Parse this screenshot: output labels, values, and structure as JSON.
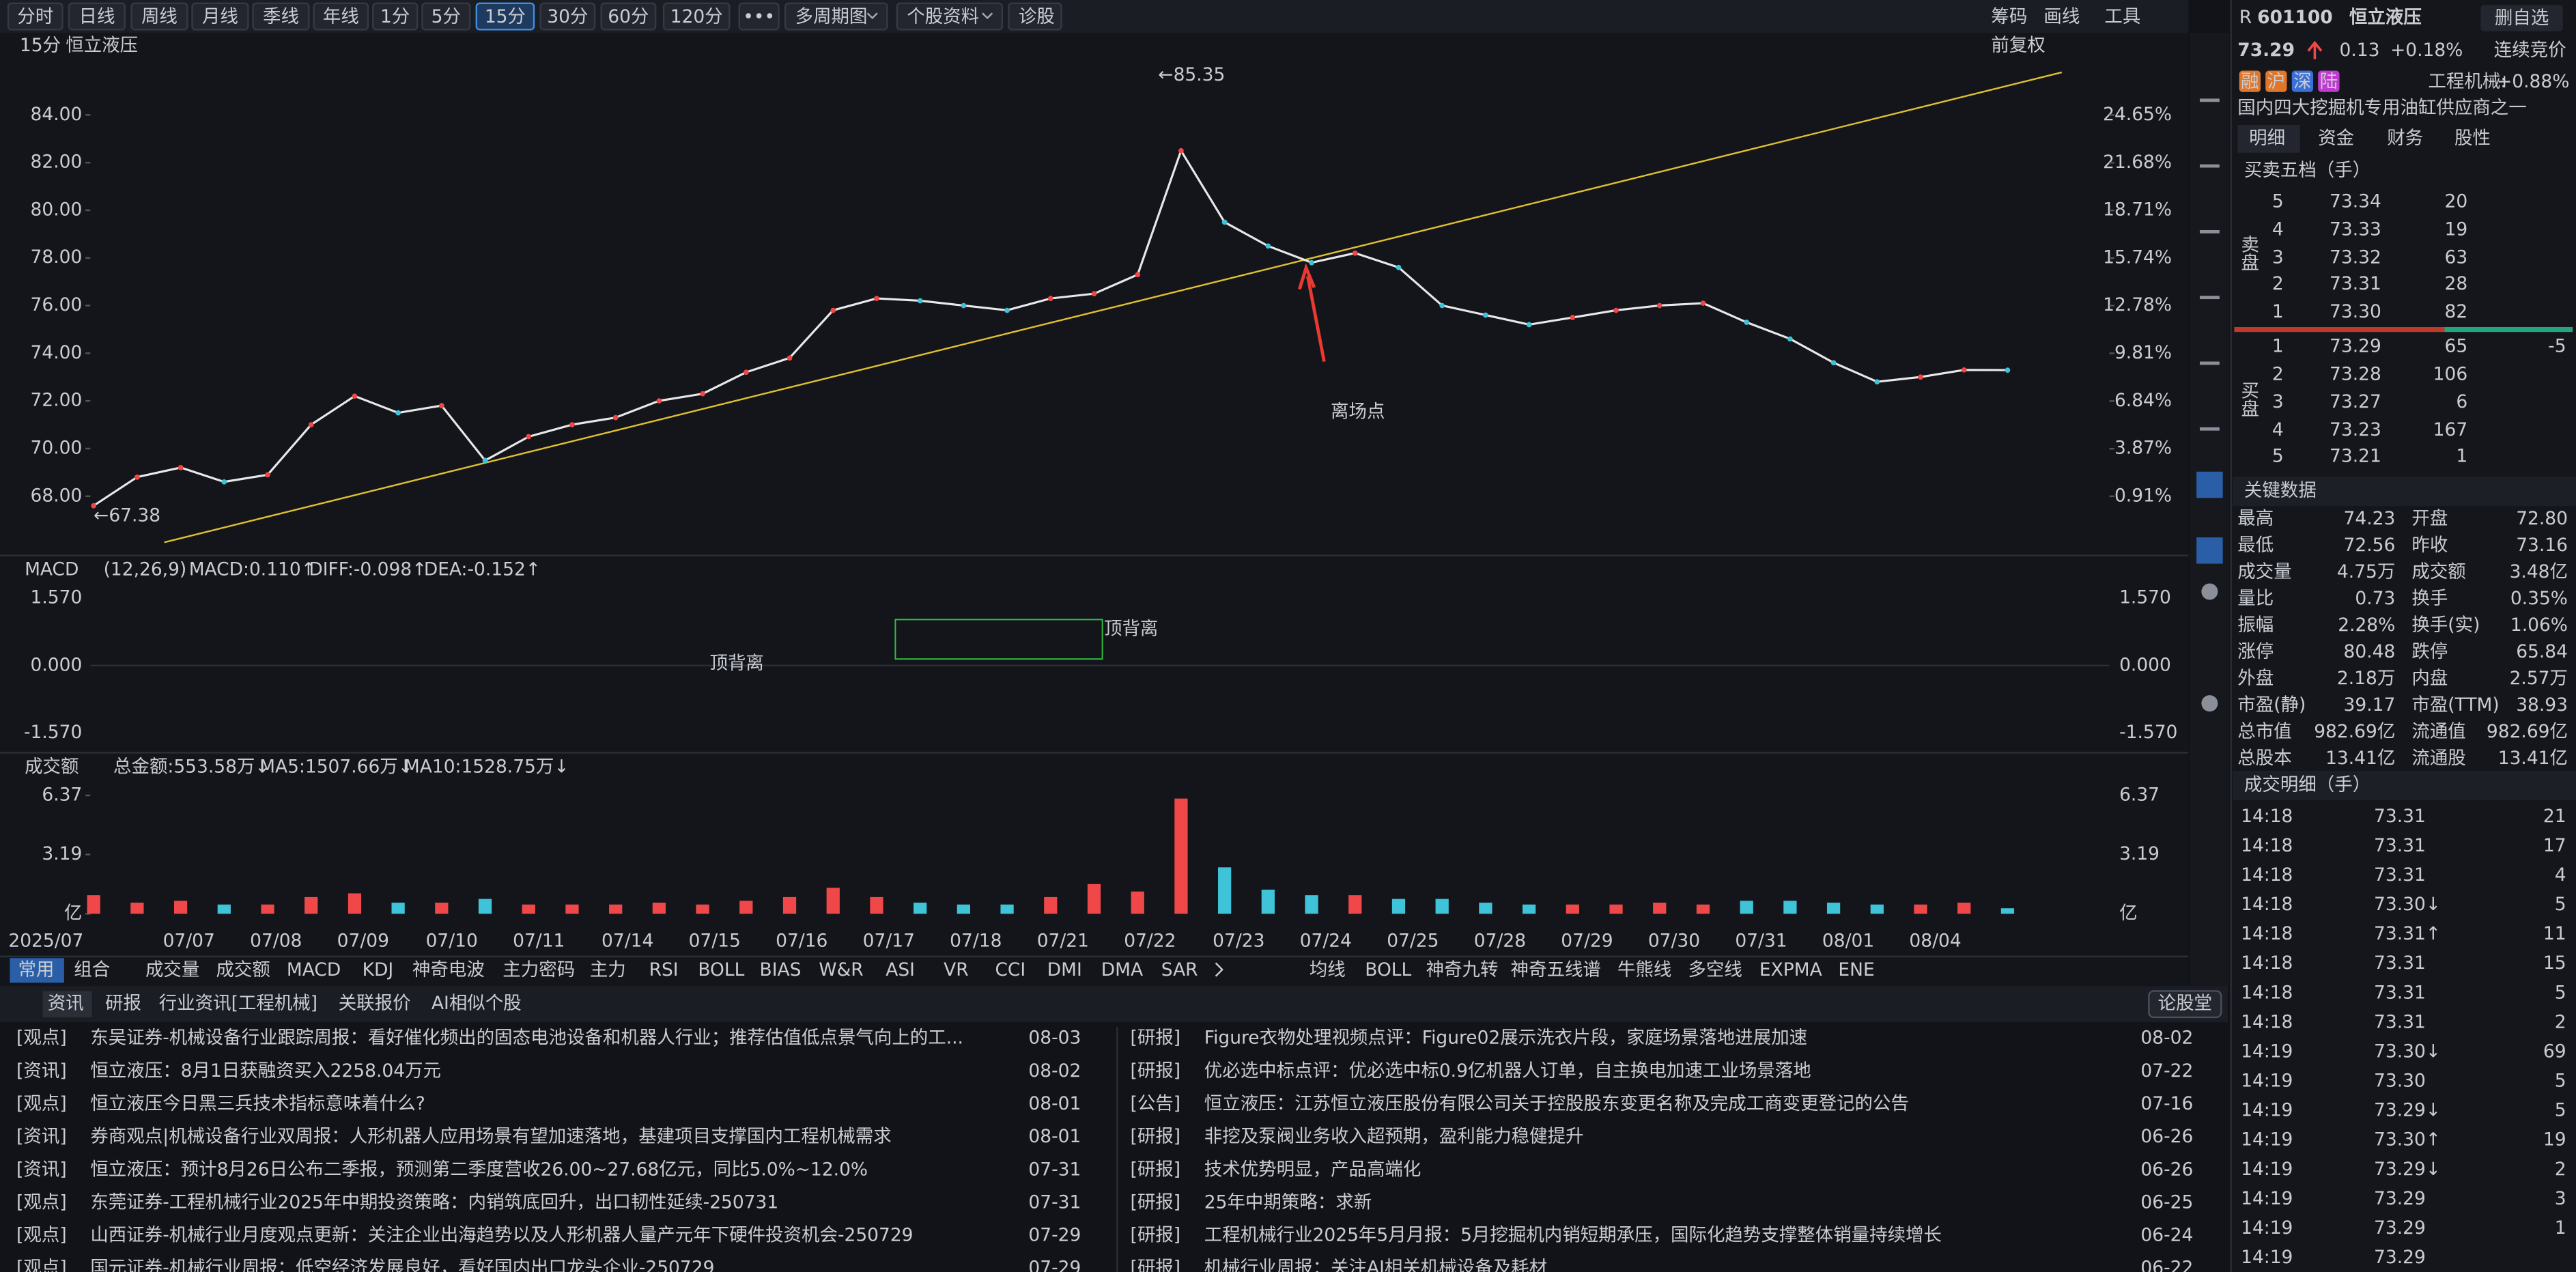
{
  "toolbar": {
    "periods": [
      "分时",
      "日线",
      "周线",
      "月线",
      "季线",
      "年线",
      "1分",
      "5分",
      "15分",
      "30分",
      "60分",
      "120分",
      "•••"
    ],
    "menus": [
      "多周期图",
      "个股资料",
      "诊股"
    ],
    "right": [
      "筹码",
      "画线",
      "工具"
    ]
  },
  "chart_header": {
    "period": "15分",
    "stock": "恒立液压",
    "adjust": "前复权"
  },
  "price_chart": {
    "type": "line",
    "closes": [
      67.6,
      68.8,
      69.2,
      68.6,
      68.9,
      71.0,
      72.2,
      71.5,
      71.8,
      69.5,
      70.5,
      71.0,
      71.3,
      72.0,
      72.3,
      73.2,
      73.8,
      75.8,
      76.3,
      76.2,
      76.0,
      75.8,
      76.3,
      76.5,
      77.3,
      82.5,
      79.5,
      78.5,
      77.8,
      78.2,
      77.6,
      76.0,
      75.6,
      75.2,
      75.5,
      75.8,
      76.0,
      76.1,
      75.3,
      74.6,
      73.6,
      72.8,
      73.0,
      73.3,
      73.29
    ],
    "color": "#e8e8e8",
    "ylim": [
      65.72,
      86.41
    ],
    "yticks": [
      {
        "value": 68,
        "label": "68.00"
      },
      {
        "value": 70,
        "label": "70.00"
      },
      {
        "value": 72,
        "label": "72.00"
      },
      {
        "value": 74,
        "label": "74.00"
      },
      {
        "value": 76,
        "label": "76.00"
      },
      {
        "value": 78,
        "label": "78.00"
      },
      {
        "value": 80,
        "label": "80.00"
      },
      {
        "value": 82,
        "label": "82.00"
      },
      {
        "value": 84,
        "label": "84.00"
      }
    ],
    "y2lim": [
      -2.47,
      28.23
    ],
    "y2ticks": [
      {
        "value": 0.91,
        "label": "0.91%"
      },
      {
        "value": 3.87,
        "label": "3.87%"
      },
      {
        "value": 6.84,
        "label": "6.84%"
      },
      {
        "value": 9.81,
        "label": "9.81%"
      },
      {
        "value": 12.78,
        "label": "12.78%"
      },
      {
        "value": 15.74,
        "label": "15.74%"
      },
      {
        "value": 18.71,
        "label": "18.71%"
      },
      {
        "value": 21.68,
        "label": "21.68%"
      },
      {
        "value": 24.65,
        "label": "24.65%"
      }
    ],
    "high_label": "←85.35",
    "low_label": "←67.38",
    "annotation": "离场点"
  },
  "macd": {
    "name": "MACD",
    "params": "(12,26,9)",
    "macd": "MACD:0.110↑",
    "diff": "DIFF:-0.098↑",
    "dea": "DEA:-0.152↑",
    "ylim": [
      -1.915,
      1.876
    ],
    "yticks": [
      {
        "value": 1.57,
        "label": "1.570"
      },
      {
        "value": 0,
        "label": "0.000"
      },
      {
        "value": -1.57,
        "label": "-1.570"
      }
    ],
    "labels": [
      "顶背离",
      "顶背离"
    ]
  },
  "volume": {
    "name": "成交额",
    "total": "总金额:553.58万↓",
    "ma5": "MA5:1507.66万↓",
    "ma10": "MA10:1528.75万↓",
    "ylim": [
      -0.35,
      6.9
    ],
    "yticks": [
      6.37,
      3.19,
      {
        "value": 0,
        "label": "亿"
      }
    ],
    "values": [
      1.0,
      0.6,
      0.7,
      0.5,
      0.5,
      0.9,
      1.1,
      0.6,
      0.6,
      0.8,
      0.5,
      0.5,
      0.5,
      0.6,
      0.5,
      0.7,
      0.9,
      1.4,
      0.9,
      0.6,
      0.5,
      0.5,
      0.9,
      1.6,
      1.2,
      6.2,
      2.5,
      1.3,
      1.0,
      1.0,
      0.8,
      0.8,
      0.6,
      0.5,
      0.5,
      0.5,
      0.6,
      0.5,
      0.7,
      0.7,
      0.6,
      0.5,
      0.5,
      0.6,
      0.3
    ]
  },
  "dates": [
    "2025/07",
    "07/07",
    "07/08",
    "07/09",
    "07/10",
    "07/11",
    "07/14",
    "07/15",
    "07/16",
    "07/17",
    "07/18",
    "07/21",
    "07/22",
    "07/23",
    "07/24",
    "07/25",
    "07/28",
    "07/29",
    "07/30",
    "07/31",
    "08/01",
    "08/04"
  ],
  "indicator_bar": {
    "groups": [
      "常用",
      "组合"
    ],
    "indicators": [
      "成交量",
      "成交额",
      "MACD",
      "KDJ",
      "神奇电波",
      "主力密码",
      "主力",
      "RSI",
      "BOLL",
      "BIAS",
      "W&R",
      "ASI",
      "VR",
      "CCI",
      "DMI",
      "DMA",
      "SAR"
    ],
    "overlays": [
      "均线",
      "BOLL",
      "神奇九转",
      "神奇五线谱",
      "牛熊线",
      "多空线",
      "EXPMA",
      "ENE"
    ]
  },
  "news": {
    "tabs": [
      "资讯",
      "研报",
      "行业资讯[工程机械]",
      "关联报价",
      "AI相似个股"
    ],
    "forum": "论股堂",
    "left": [
      [
        "[观点]",
        "东吴证券-机械设备行业跟踪周报：看好催化频出的固态电池设备和机器人行业；推荐估值低点景气向上的工...",
        "08-03"
      ],
      [
        "[资讯]",
        "恒立液压：8月1日获融资买入2258.04万元",
        "08-02"
      ],
      [
        "[观点]",
        "恒立液压今日黑三兵技术指标意味着什么?",
        "08-01"
      ],
      [
        "[资讯]",
        "券商观点|机械设备行业双周报：人形机器人应用场景有望加速落地，基建项目支撑国内工程机械需求",
        "08-01"
      ],
      [
        "[资讯]",
        "恒立液压：预计8月26日公布二季报，预测第二季度营收26.00~27.68亿元，同比5.0%~12.0%",
        "07-31"
      ],
      [
        "[观点]",
        "东莞证券-工程机械行业2025年中期投资策略：内销筑底回升，出口韧性延续-250731",
        "07-31"
      ],
      [
        "[观点]",
        "山西证券-机械行业月度观点更新：关注企业出海趋势以及人形机器人量产元年下硬件投资机会-250729",
        "07-29"
      ],
      [
        "[观点]",
        "国元证券-机械行业周报：低空经济发展良好，看好国内出口龙头企业-250729",
        "07-29"
      ]
    ],
    "right": [
      [
        "[研报]",
        "Figure衣物处理视频点评：Figure02展示洗衣片段，家庭场景落地进展加速",
        "08-02"
      ],
      [
        "[研报]",
        "优必选中标点评：优必选中标0.9亿机器人订单，自主换电加速工业场景落地",
        "07-22"
      ],
      [
        "[公告]",
        "恒立液压：江苏恒立液压股份有限公司关于控股股东变更名称及完成工商变更登记的公告",
        "07-16"
      ],
      [
        "[研报]",
        "非挖及泵阀业务收入超预期，盈利能力稳健提升",
        "06-26"
      ],
      [
        "[研报]",
        "技术优势明显，产品高端化",
        "06-26"
      ],
      [
        "[研报]",
        "25年中期策略：求新",
        "06-25"
      ],
      [
        "[研报]",
        "工程机械行业2025年5月月报：5月挖掘机内销短期承压，国际化趋势支撑整体销量持续增长",
        "06-24"
      ],
      [
        "[研报]",
        "机械行业周报：关注AI相关机械设备及耗材",
        "06-22"
      ]
    ]
  },
  "quote": {
    "market": "R",
    "code": "601100",
    "name": "恒立液压",
    "remove": "删自选",
    "price": "73.29",
    "change": "0.13",
    "pct": "+0.18%",
    "status": "连续竞价",
    "badges": [
      "融",
      "沪",
      "深",
      "陆"
    ],
    "industry": "工程机械:",
    "industry_pct": "+0.88%",
    "desc": "国内四大挖掘机专用油缸供应商之一",
    "tabs": [
      "明细",
      "资金",
      "财务",
      "股性"
    ],
    "book_title": "买卖五档（手）",
    "sell_label": "卖盘",
    "buy_label": "买盘",
    "asks": [
      [
        5,
        "73.34",
        20
      ],
      [
        4,
        "73.33",
        19
      ],
      [
        3,
        "73.32",
        63
      ],
      [
        2,
        "73.31",
        28
      ],
      [
        1,
        "73.30",
        82
      ]
    ],
    "bids": [
      [
        1,
        "73.29",
        65
      ],
      [
        2,
        "73.28",
        106
      ],
      [
        3,
        "73.27",
        6
      ],
      [
        4,
        "73.23",
        167
      ],
      [
        5,
        "73.21",
        1
      ]
    ],
    "bid_change": -5,
    "key_title": "关键数据",
    "key": [
      [
        "最高",
        "74.23",
        "开盘",
        "72.80"
      ],
      [
        "最低",
        "72.56",
        "昨收",
        "73.16"
      ],
      [
        "成交量",
        "4.75万",
        "成交额",
        "3.48亿"
      ],
      [
        "量比",
        "0.73",
        "换手",
        "0.35%"
      ],
      [
        "振幅",
        "2.28%",
        "换手(实)",
        "1.06%"
      ],
      [
        "涨停",
        "80.48",
        "跌停",
        "65.84"
      ],
      [
        "外盘",
        "2.18万",
        "内盘",
        "2.57万"
      ],
      [
        "市盈(静)",
        "39.17",
        "市盈(TTM)",
        "38.93"
      ],
      [
        "总市值",
        "982.69亿",
        "流通值",
        "982.69亿"
      ],
      [
        "总股本",
        "13.41亿",
        "流通股",
        "13.41亿"
      ]
    ],
    "trades_title": "成交明细（手）",
    "trades": [
      [
        "14:18",
        "73.31",
        21
      ],
      [
        "14:18",
        "73.31",
        17
      ],
      [
        "14:18",
        "73.31",
        4
      ],
      [
        "14:18",
        "73.30↓",
        5
      ],
      [
        "14:18",
        "73.31↑",
        11
      ],
      [
        "14:18",
        "73.31",
        15
      ],
      [
        "14:18",
        "73.31",
        5
      ],
      [
        "14:18",
        "73.31",
        2
      ],
      [
        "14:19",
        "73.30↓",
        69
      ],
      [
        "14:19",
        "73.30",
        5
      ],
      [
        "14:19",
        "73.29↓",
        5
      ],
      [
        "14:19",
        "73.30↑",
        19
      ],
      [
        "14:19",
        "73.29↓",
        2
      ],
      [
        "14:19",
        "73.29",
        3
      ],
      [
        "14:19",
        "73.29",
        1
      ],
      [
        "14:19",
        "73.29"
      ]
    ]
  }
}
